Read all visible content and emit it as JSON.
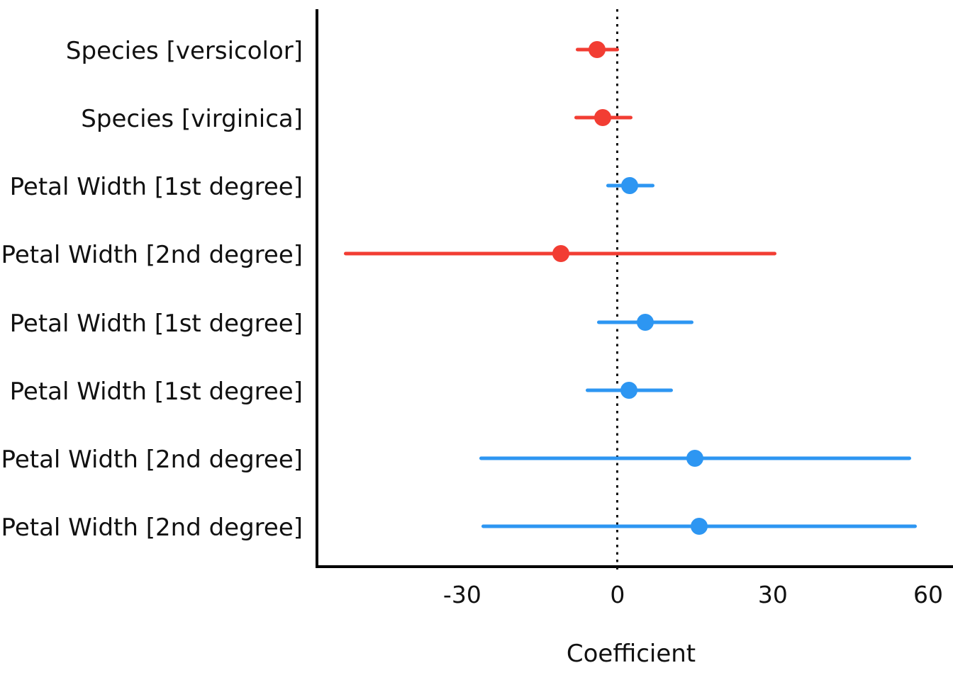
{
  "chart_data": {
    "type": "scatter",
    "subtype": "coefficient-forest-plot",
    "title": "",
    "xlabel": "Coefficient",
    "ylabel": "",
    "xlim": [
      -58.2,
      64.8
    ],
    "xticks": [
      -30,
      0,
      30,
      60
    ],
    "grid": "off",
    "zero_reference_line": 0,
    "colors": {
      "positive": "#2D96F2",
      "negative": "#F23D33",
      "axis": "#000000",
      "text": "#111111"
    },
    "rows": [
      {
        "label": "Species [versicolor]",
        "estimate": -3.9,
        "ci_low": -8.1,
        "ci_high": 0.3,
        "color": "negative"
      },
      {
        "label": "Species [virginica]",
        "estimate": -2.9,
        "ci_low": -8.4,
        "ci_high": 2.9,
        "color": "negative"
      },
      {
        "label": "Petal Width [1st degree]",
        "estimate": 2.3,
        "ci_low": -2.2,
        "ci_high": 7.2,
        "color": "positive"
      },
      {
        "label": "Petal Width [2nd degree]",
        "estimate": -11.0,
        "ci_low": -52.8,
        "ci_high": 30.7,
        "color": "negative"
      },
      {
        "label": "Petal Width [1st degree]",
        "estimate": 5.4,
        "ci_low": -4.0,
        "ci_high": 14.7,
        "color": "positive"
      },
      {
        "label": "Petal Width [1st degree]",
        "estimate": 2.2,
        "ci_low": -6.2,
        "ci_high": 10.7,
        "color": "positive"
      },
      {
        "label": "Petal Width [2nd degree]",
        "estimate": 14.9,
        "ci_low": -26.7,
        "ci_high": 56.7,
        "color": "positive"
      },
      {
        "label": "Petal Width [2nd degree]",
        "estimate": 15.8,
        "ci_low": -26.3,
        "ci_high": 57.8,
        "color": "positive"
      }
    ]
  }
}
